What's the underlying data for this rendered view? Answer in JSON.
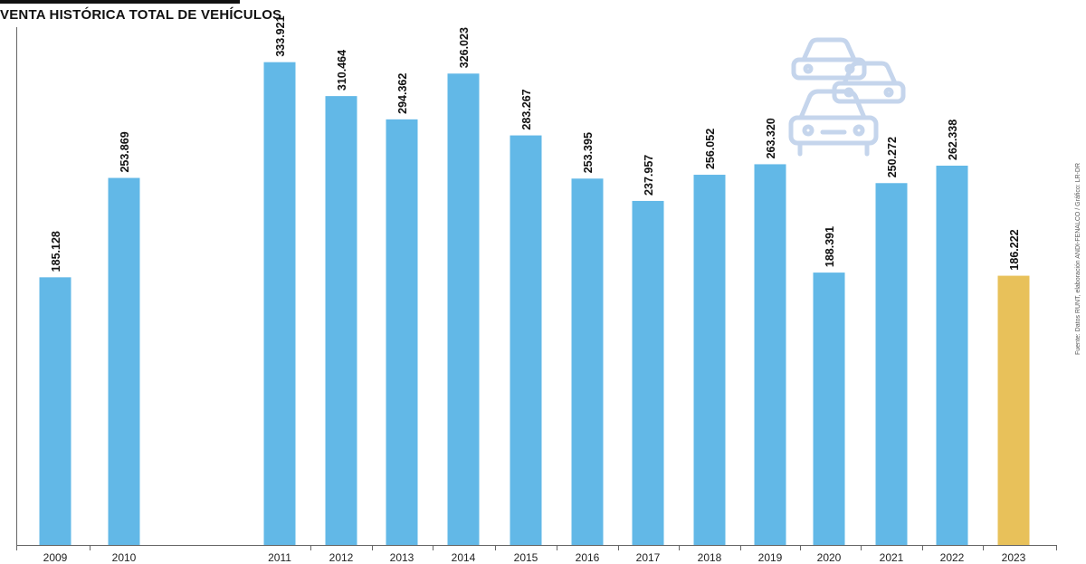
{
  "title": "VENTA HISTÓRICA TOTAL DE VEHÍCULOS",
  "source": "Fuente: Datos RUNT, elaboración ANDI-FENALCO / Gráfico: LR-DR",
  "icon": "car-traffic-icon",
  "colors": {
    "bar": "#62b8e7",
    "highlight": "#e8c15a",
    "axis": "#666666",
    "icon": "#c5d5ec",
    "text": "#111111"
  },
  "chart_data": {
    "type": "bar",
    "title": "VENTA HISTÓRICA TOTAL DE VEHÍCULOS",
    "xlabel": "",
    "ylabel": "",
    "ylim": [
      0,
      355000
    ],
    "grid": false,
    "legend": "none",
    "categories": [
      "2009",
      "2010",
      "2011",
      "2012",
      "2013",
      "2014",
      "2015",
      "2016",
      "2017",
      "2018",
      "2019",
      "2020",
      "2021",
      "2022",
      "2023"
    ],
    "values": [
      185128,
      253869,
      333921,
      310464,
      294362,
      326023,
      283267,
      253395,
      237957,
      256052,
      263320,
      188391,
      250272,
      262338,
      186222
    ],
    "value_labels": [
      "185.128",
      "253.869",
      "333.921",
      "310.464",
      "294.362",
      "326.023",
      "283.267",
      "253.395",
      "237.957",
      "256.052",
      "263.320",
      "188.391",
      "250.272",
      "262.338",
      "186.222"
    ],
    "highlight_category": "2023"
  }
}
